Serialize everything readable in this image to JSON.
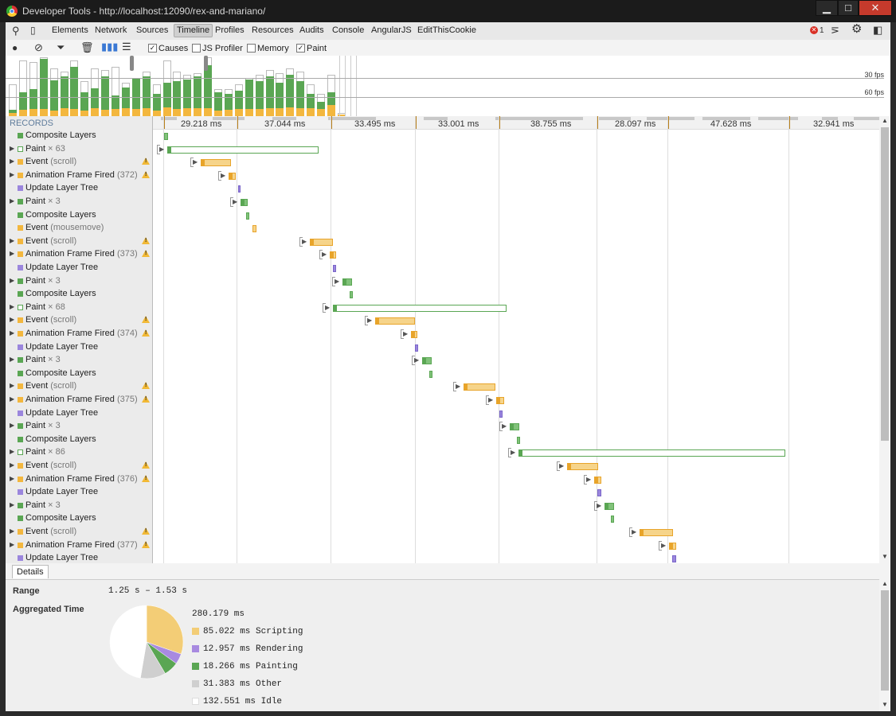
{
  "window": {
    "title": "Developer Tools - http://localhost:12090/rex-and-mariano/",
    "min": "▁",
    "max": "□",
    "close": "✕"
  },
  "tabs": [
    "Elements",
    "Network",
    "Sources",
    "Timeline",
    "Profiles",
    "Resources",
    "Audits",
    "Console",
    "AngularJS",
    "EditThisCookie"
  ],
  "active_tab": "Timeline",
  "error_count": "1",
  "toolbar": {
    "causes": "Causes",
    "js_profiler": "JS Profiler",
    "memory": "Memory",
    "paint": "Paint"
  },
  "overview": {
    "fps30": "30 fps",
    "fps60": "60 fps"
  },
  "records_header": "RECORDS",
  "frame_durations": [
    "29.218 ms",
    "37.044 ms",
    "33.495 ms",
    "33.001 ms",
    "38.755 ms",
    "28.097 ms",
    "47.628 ms",
    "32.941 ms"
  ],
  "records": [
    {
      "name": "Composite Layers",
      "sub": "",
      "color": "green",
      "tri": false,
      "warn": false
    },
    {
      "name": "Paint",
      "sub": "× 63",
      "color": "green-outline",
      "tri": true,
      "warn": false
    },
    {
      "name": "Event",
      "sub": "(scroll)",
      "color": "yellow",
      "tri": true,
      "warn": true
    },
    {
      "name": "Animation Frame Fired",
      "sub": "(372)",
      "color": "yellow",
      "tri": true,
      "warn": true
    },
    {
      "name": "Update Layer Tree",
      "sub": "",
      "color": "purple",
      "tri": false,
      "warn": false
    },
    {
      "name": "Paint",
      "sub": "× 3",
      "color": "green",
      "tri": true,
      "warn": false
    },
    {
      "name": "Composite Layers",
      "sub": "",
      "color": "green",
      "tri": false,
      "warn": false
    },
    {
      "name": "Event",
      "sub": "(mousemove)",
      "color": "yellow",
      "tri": false,
      "warn": false
    },
    {
      "name": "Event",
      "sub": "(scroll)",
      "color": "yellow",
      "tri": true,
      "warn": true
    },
    {
      "name": "Animation Frame Fired",
      "sub": "(373)",
      "color": "yellow",
      "tri": true,
      "warn": true
    },
    {
      "name": "Update Layer Tree",
      "sub": "",
      "color": "purple",
      "tri": false,
      "warn": false
    },
    {
      "name": "Paint",
      "sub": "× 3",
      "color": "green",
      "tri": true,
      "warn": false
    },
    {
      "name": "Composite Layers",
      "sub": "",
      "color": "green",
      "tri": false,
      "warn": false
    },
    {
      "name": "Paint",
      "sub": "× 68",
      "color": "green-outline",
      "tri": true,
      "warn": false
    },
    {
      "name": "Event",
      "sub": "(scroll)",
      "color": "yellow",
      "tri": true,
      "warn": true
    },
    {
      "name": "Animation Frame Fired",
      "sub": "(374)",
      "color": "yellow",
      "tri": true,
      "warn": true
    },
    {
      "name": "Update Layer Tree",
      "sub": "",
      "color": "purple",
      "tri": false,
      "warn": false
    },
    {
      "name": "Paint",
      "sub": "× 3",
      "color": "green",
      "tri": true,
      "warn": false
    },
    {
      "name": "Composite Layers",
      "sub": "",
      "color": "green",
      "tri": false,
      "warn": false
    },
    {
      "name": "Event",
      "sub": "(scroll)",
      "color": "yellow",
      "tri": true,
      "warn": true
    },
    {
      "name": "Animation Frame Fired",
      "sub": "(375)",
      "color": "yellow",
      "tri": true,
      "warn": true
    },
    {
      "name": "Update Layer Tree",
      "sub": "",
      "color": "purple",
      "tri": false,
      "warn": false
    },
    {
      "name": "Paint",
      "sub": "× 3",
      "color": "green",
      "tri": true,
      "warn": false
    },
    {
      "name": "Composite Layers",
      "sub": "",
      "color": "green",
      "tri": false,
      "warn": false
    },
    {
      "name": "Paint",
      "sub": "× 86",
      "color": "green-outline",
      "tri": true,
      "warn": false
    },
    {
      "name": "Event",
      "sub": "(scroll)",
      "color": "yellow",
      "tri": true,
      "warn": true
    },
    {
      "name": "Animation Frame Fired",
      "sub": "(376)",
      "color": "yellow",
      "tri": true,
      "warn": true
    },
    {
      "name": "Update Layer Tree",
      "sub": "",
      "color": "purple",
      "tri": false,
      "warn": false
    },
    {
      "name": "Paint",
      "sub": "× 3",
      "color": "green",
      "tri": true,
      "warn": false
    },
    {
      "name": "Composite Layers",
      "sub": "",
      "color": "green",
      "tri": false,
      "warn": false
    },
    {
      "name": "Event",
      "sub": "(scroll)",
      "color": "yellow",
      "tri": true,
      "warn": true
    },
    {
      "name": "Animation Frame Fired",
      "sub": "(377)",
      "color": "yellow",
      "tri": true,
      "warn": true
    },
    {
      "name": "Update Layer Tree",
      "sub": "",
      "color": "purple",
      "tri": false,
      "warn": false
    }
  ],
  "details": {
    "tab": "Details",
    "range_label": "Range",
    "range_value": "1.25 s – 1.53 s",
    "aggregated_label": "Aggregated Time",
    "total": "280.179 ms",
    "legend": [
      {
        "label": "85.022 ms Scripting",
        "value": 85.022,
        "color": "#f3cd76"
      },
      {
        "label": "12.957 ms Rendering",
        "value": 12.957,
        "color": "#a88ae0"
      },
      {
        "label": "18.266 ms Painting",
        "value": 18.266,
        "color": "#5aa653"
      },
      {
        "label": "31.383 ms Other",
        "value": 31.383,
        "color": "#cfcfcf"
      },
      {
        "label": "132.551 ms Idle",
        "value": 132.551,
        "color": "#ffffff"
      }
    ]
  },
  "colors": {
    "scripting": "#f3cd76",
    "rendering": "#9b86dd",
    "painting": "#5aa653",
    "accent": "#607d9c"
  }
}
